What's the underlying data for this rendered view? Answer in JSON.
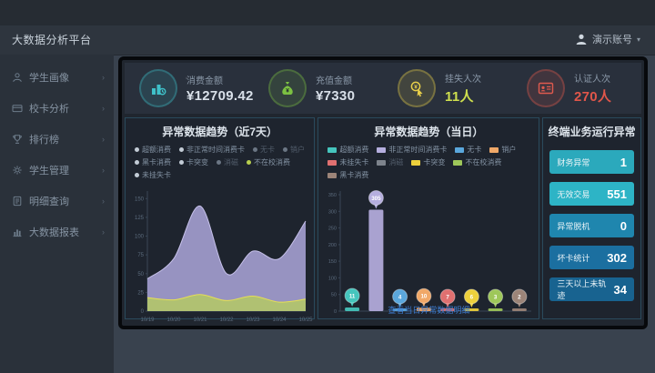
{
  "topbar": {
    "user": "演示账号"
  },
  "sidebar": {
    "title": "大数据分析平台",
    "items": [
      {
        "label": "学生画像",
        "icon": "person-icon"
      },
      {
        "label": "校卡分析",
        "icon": "card-icon"
      },
      {
        "label": "排行榜",
        "icon": "trophy-icon"
      },
      {
        "label": "学生管理",
        "icon": "manage-icon"
      },
      {
        "label": "明细查询",
        "icon": "document-icon"
      },
      {
        "label": "大数据报表",
        "icon": "report-icon"
      }
    ]
  },
  "kpis": [
    {
      "label": "消费金额",
      "value": "¥12709.42",
      "icon": "consume-chart-icon",
      "color": "#3fc1c9",
      "value_color": "#d9e0e9"
    },
    {
      "label": "充值金额",
      "value": "¥7330",
      "icon": "money-bag-icon",
      "color": "#7cc142",
      "value_color": "#d9e0e9"
    },
    {
      "label": "挂失人次",
      "value": "11人",
      "icon": "hand-click-icon",
      "color": "#e8cf4a",
      "value_color": "#cfe04e"
    },
    {
      "label": "认证人次",
      "value": "270人",
      "icon": "id-card-icon",
      "color": "#e05a4e",
      "value_color": "#e0564a"
    }
  ],
  "chart_data": [
    {
      "type": "area",
      "title": "异常数据趋势（近7天）",
      "x": [
        "10/19",
        "10/20",
        "10/21",
        "10/22",
        "10/23",
        "10/24",
        "10/25"
      ],
      "series": [
        {
          "name": "非正常时间消费卡",
          "values": [
            43,
            70,
            140,
            50,
            80,
            70,
            120
          ],
          "color": "#a9a3d6",
          "line_color": "#c6c1ea"
        },
        {
          "name": "不在校消费",
          "values": [
            18,
            15,
            22,
            14,
            20,
            12,
            16
          ],
          "color": "#b4c766",
          "line_color": "#e6df56"
        }
      ],
      "ylim": [
        0,
        160
      ],
      "yticks": [
        0,
        25,
        50,
        75,
        100,
        125,
        150
      ],
      "legend_position": "top",
      "legend": [
        {
          "label": "超额消费",
          "color": "#c3ccd6",
          "dim": false
        },
        {
          "label": "非正常时间消费卡",
          "color": "#c3ccd6",
          "dim": false
        },
        {
          "label": "无卡",
          "color": "#6b7684",
          "dim": true
        },
        {
          "label": "销户",
          "color": "#6b7684",
          "dim": true
        },
        {
          "label": "黑卡消费",
          "color": "#c3ccd6",
          "dim": false
        },
        {
          "label": "卡突变",
          "color": "#c3ccd6",
          "dim": false
        },
        {
          "label": "消磁",
          "color": "#6b7684",
          "dim": true
        },
        {
          "label": "不在校消费",
          "color": "#b8cf4e",
          "dim": false
        },
        {
          "label": "未挂失卡",
          "color": "#c3ccd6",
          "dim": false
        }
      ]
    },
    {
      "type": "bar",
      "title": "异常数据趋势（当日）",
      "categories": [
        "超额消费",
        "非正常时间消费卡",
        "无卡",
        "销户",
        "未挂失卡",
        "卡突变",
        "不在校消费",
        "黑卡消费"
      ],
      "values": [
        11,
        305,
        4,
        10,
        7,
        6,
        3,
        2
      ],
      "colors": [
        "#45c5bd",
        "#b5aede",
        "#5aa7dc",
        "#f0a868",
        "#e07070",
        "#edd03c",
        "#9ec75a",
        "#9c8478"
      ],
      "ylim": [
        0,
        350
      ],
      "yticks": [
        0,
        50,
        100,
        150,
        200,
        250,
        300,
        350
      ],
      "footer_link": "查看当日异常数据明细",
      "legend": [
        {
          "label": "超额消费",
          "color": "#45c5bd",
          "dim": false
        },
        {
          "label": "非正常时间消费卡",
          "color": "#b5aede",
          "dim": false
        },
        {
          "label": "无卡",
          "color": "#5aa7dc",
          "dim": false
        },
        {
          "label": "销户",
          "color": "#f0a868",
          "dim": false
        },
        {
          "label": "未挂失卡",
          "color": "#e07070",
          "dim": false
        },
        {
          "label": "消磁",
          "color": "#7d838c",
          "dim": true
        },
        {
          "label": "卡突变",
          "color": "#edd03c",
          "dim": false
        },
        {
          "label": "不在校消费",
          "color": "#9ec75a",
          "dim": false
        },
        {
          "label": "黑卡消费",
          "color": "#9c8478",
          "dim": false
        }
      ]
    }
  ],
  "terminal_panel": {
    "title": "终端业务运行异常",
    "row_colors": [
      "#2ba9bc",
      "#2db4c6",
      "#1f86ae",
      "#1b6fa0",
      "#186390"
    ],
    "items": [
      {
        "label": "财务异常",
        "value": "1"
      },
      {
        "label": "无效交易",
        "value": "551"
      },
      {
        "label": "异常脱机",
        "value": "0"
      },
      {
        "label": "坏卡统计",
        "value": "302"
      },
      {
        "label": "三天以上未轨迹",
        "value": "34"
      }
    ]
  }
}
